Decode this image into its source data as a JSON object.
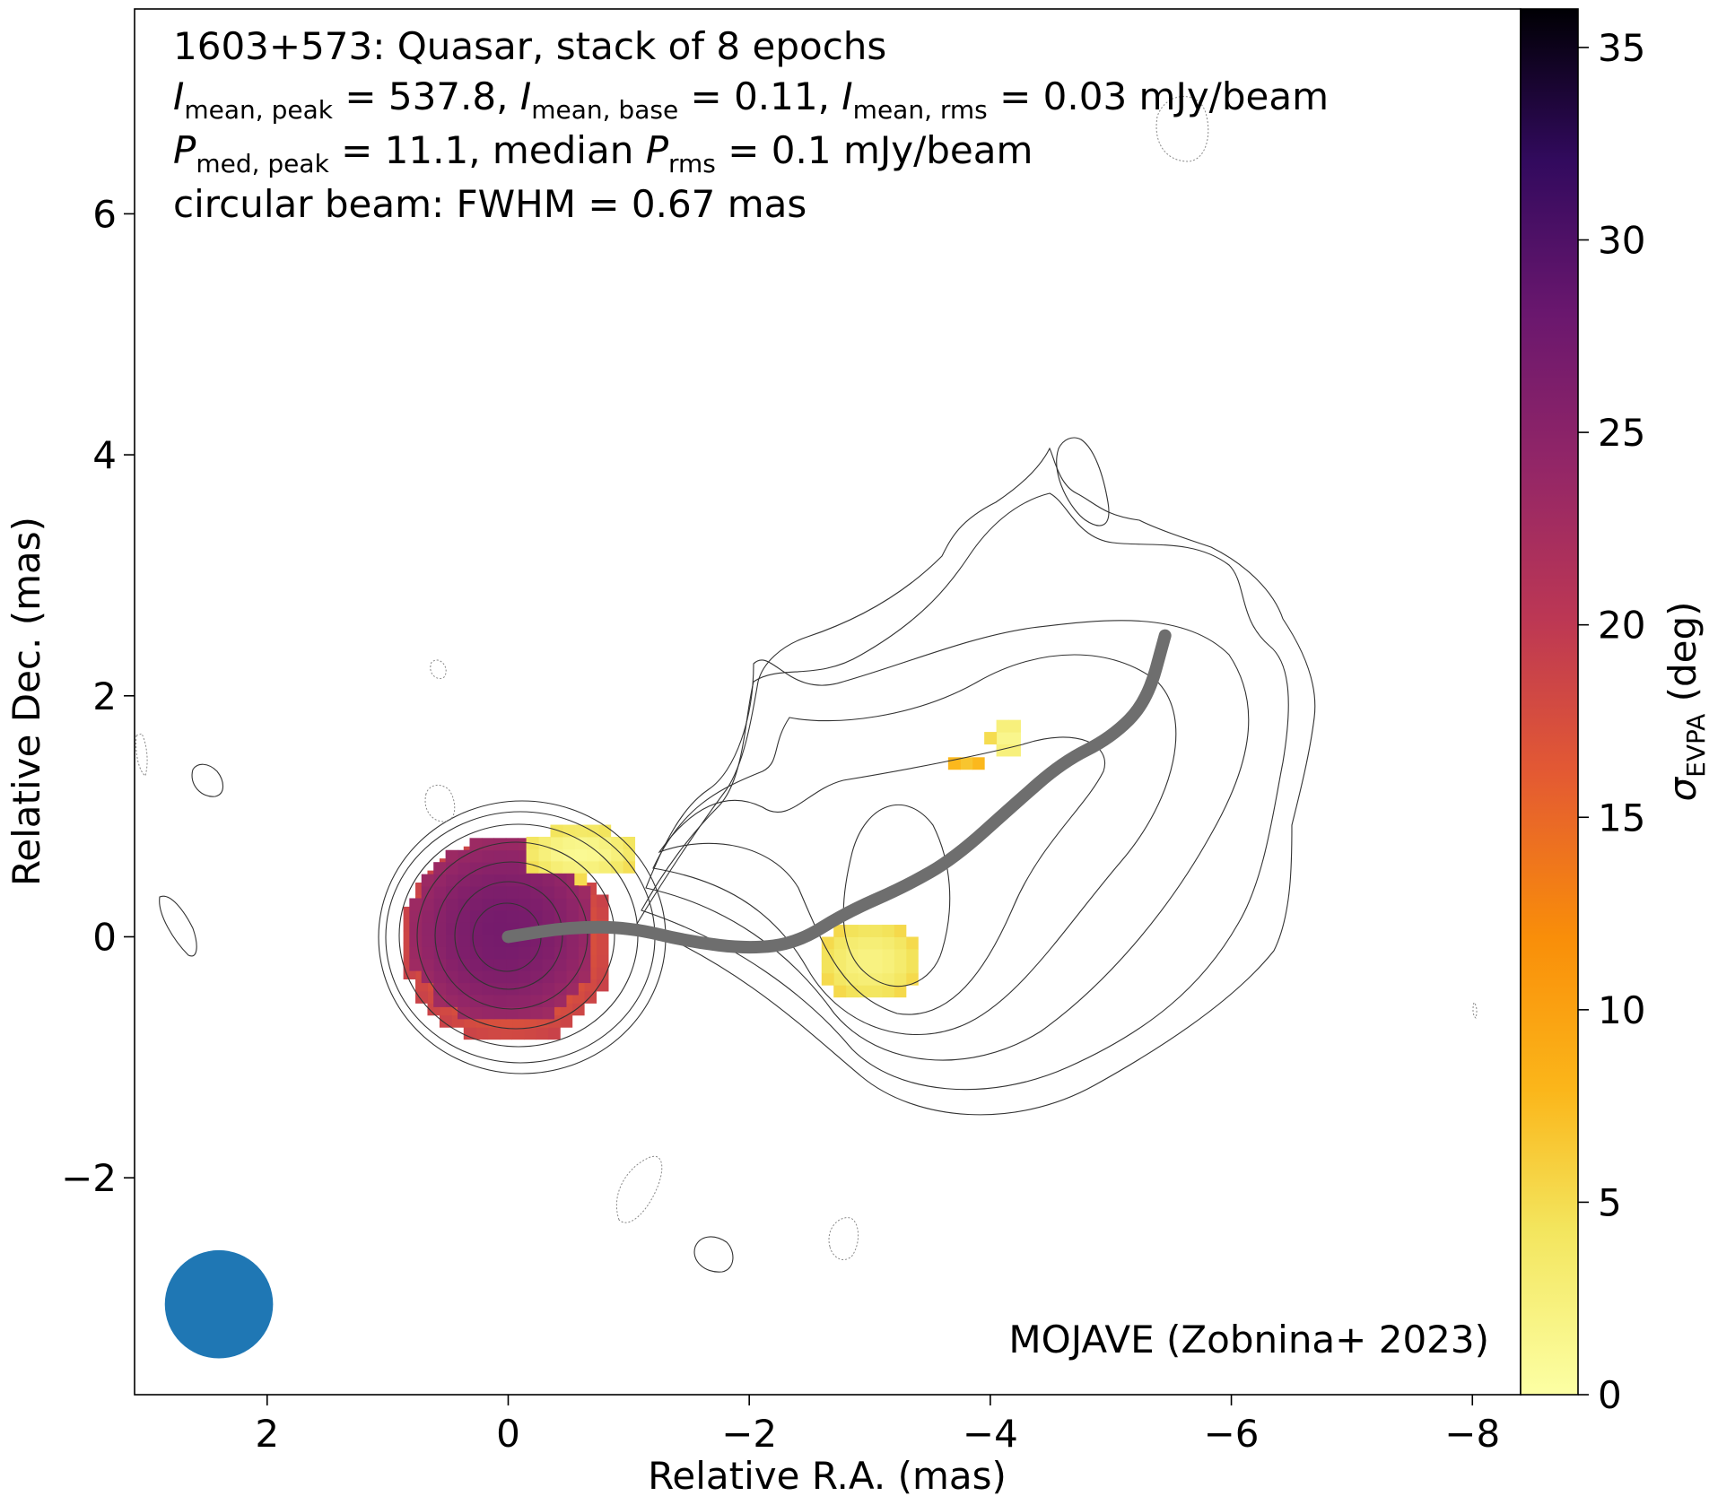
{
  "chart_data": {
    "type": "heatmap",
    "title_lines": [
      "1603+573: Quasar, stack of 8 epochs",
      "I_mean,peak = 537.8, I_mean,base = 0.11, I_mean,rms = 0.03 mJy/beam",
      "P_med,peak = 11.1, median P_rms = 0.1 mJy/beam",
      "circular beam: FWHM = 0.67 mas"
    ],
    "header": {
      "line1": "1603+573: Quasar, stack of 8 epochs",
      "line2": {
        "i1_sym": "I",
        "i1_sub": "mean, peak",
        "i1_val": " = 537.8, ",
        "i2_sym": "I",
        "i2_sub": "mean, base",
        "i2_val": " = 0.11, ",
        "i3_sym": "I",
        "i3_sub": "mean, rms",
        "i3_val": " = 0.03 mJy/beam"
      },
      "line3": {
        "p1_sym": "P",
        "p1_sub": "med, peak",
        "p1_val": " = 11.1, median ",
        "p2_sym": "P",
        "p2_sub": "rms",
        "p2_val": " = 0.1 mJy/beam"
      },
      "line4": "circular beam: FWHM = 0.67 mas"
    },
    "credit": "MOJAVE (Zobnina+ 2023)",
    "xlabel": "Relative R.A. (mas)",
    "ylabel": "Relative Dec. (mas)",
    "colorbar_label": {
      "sym": "σ",
      "sub": "EVPA",
      "rest": " (deg)"
    },
    "xlim": [
      3.1,
      -8.4
    ],
    "ylim": [
      -3.8,
      7.7
    ],
    "xticks": [
      2,
      0,
      -2,
      -4,
      -6,
      -8
    ],
    "xtick_labels": [
      "2",
      "0",
      "−2",
      "−4",
      "−6",
      "−8"
    ],
    "yticks": [
      -2,
      0,
      2,
      4,
      6
    ],
    "ytick_labels": [
      "−2",
      "0",
      "2",
      "4",
      "6"
    ],
    "colorbar_range": [
      0,
      36
    ],
    "colorbar_ticks": [
      0,
      5,
      10,
      15,
      20,
      25,
      30,
      35
    ],
    "colorbar_tick_labels": [
      "0",
      "5",
      "10",
      "15",
      "20",
      "25",
      "30",
      "35"
    ],
    "colormap": "inferno_r",
    "beam": {
      "x": 2.4,
      "y": -3.05,
      "fwhm": 0.67,
      "color": "#1f77b4"
    },
    "ridge_line": {
      "color": "#6e6e6e",
      "points": [
        [
          0,
          0
        ],
        [
          -0.5,
          0.08
        ],
        [
          -1.0,
          0.08
        ],
        [
          -1.5,
          -0.04
        ],
        [
          -2.0,
          -0.1
        ],
        [
          -2.4,
          -0.05
        ],
        [
          -2.8,
          0.2
        ],
        [
          -3.3,
          0.42
        ],
        [
          -3.7,
          0.65
        ],
        [
          -4.2,
          1.1
        ],
        [
          -4.6,
          1.45
        ],
        [
          -5.0,
          1.65
        ],
        [
          -5.3,
          1.95
        ],
        [
          -5.45,
          2.5
        ]
      ]
    },
    "evpa_regions": [
      {
        "name": "core",
        "x": 0.05,
        "y": 0.05,
        "rx": 0.78,
        "ry": 0.78,
        "value": 25
      },
      {
        "name": "core-edge",
        "x": 0.0,
        "y": -0.05,
        "rx": 0.88,
        "ry": 0.85,
        "value": 17
      },
      {
        "name": "core-ne-patch",
        "x": -0.6,
        "y": 0.7,
        "rx": 0.5,
        "ry": 0.22,
        "value": 3
      },
      {
        "name": "jet-blob",
        "x": -3.0,
        "y": -0.2,
        "rx": 0.45,
        "ry": 0.35,
        "value": 4
      },
      {
        "name": "jet-knot-1",
        "x": -4.15,
        "y": 1.65,
        "rx": 0.15,
        "ry": 0.2,
        "value": 3
      },
      {
        "name": "jet-knot-2",
        "x": -3.8,
        "y": 1.4,
        "rx": 0.2,
        "ry": 0.06,
        "value": 7
      }
    ]
  }
}
